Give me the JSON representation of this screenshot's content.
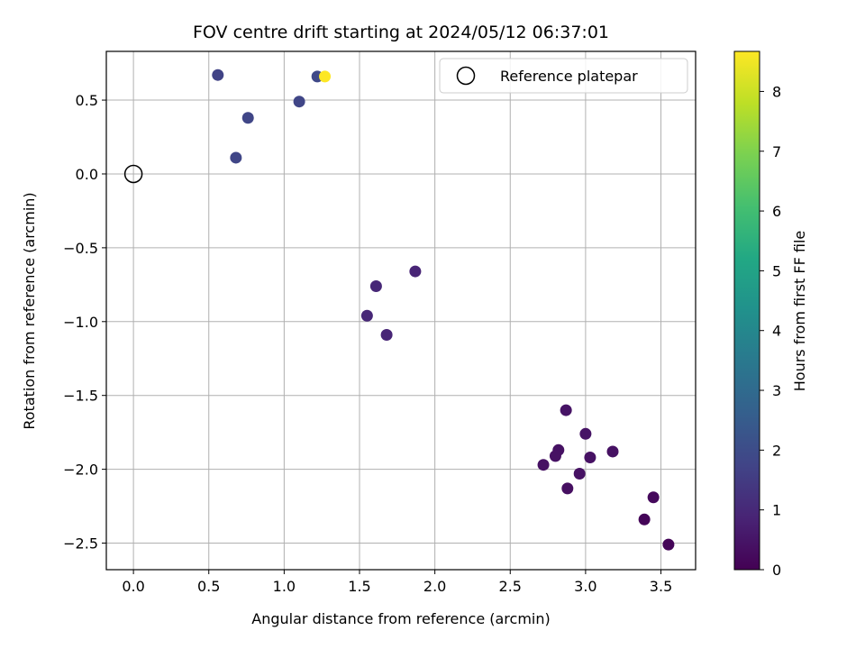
{
  "chart_data": {
    "type": "scatter",
    "title": "FOV centre drift starting at 2024/05/12 06:37:01",
    "xlabel": "Angular distance from reference (arcmin)",
    "ylabel": "Rotation from reference (arcmin)",
    "colorbar_label": "Hours from first FF file",
    "xlim": [
      -0.18,
      3.73
    ],
    "ylim": [
      -2.68,
      0.83
    ],
    "clim": [
      0,
      8.67
    ],
    "x_ticks": [
      "0.0",
      "0.5",
      "1.0",
      "1.5",
      "2.0",
      "2.5",
      "3.0",
      "3.5"
    ],
    "y_ticks": [
      "0.5",
      "0.0",
      "−0.5",
      "−1.0",
      "−1.5",
      "−2.0",
      "−2.5"
    ],
    "colorbar_ticks": [
      "0",
      "1",
      "2",
      "3",
      "4",
      "5",
      "6",
      "7",
      "8"
    ],
    "grid": true,
    "colormap": "viridis",
    "legend": {
      "position": "top-right",
      "entries": [
        "Reference platepar"
      ]
    },
    "reference_point": {
      "x": 0.0,
      "y": 0.0
    },
    "points": [
      {
        "x": 0.56,
        "y": 0.67,
        "t": 1.7
      },
      {
        "x": 0.76,
        "y": 0.38,
        "t": 1.8
      },
      {
        "x": 0.68,
        "y": 0.11,
        "t": 1.8
      },
      {
        "x": 1.1,
        "y": 0.49,
        "t": 1.8
      },
      {
        "x": 1.22,
        "y": 0.66,
        "t": 1.9
      },
      {
        "x": 1.27,
        "y": 0.66,
        "t": 8.67
      },
      {
        "x": 1.87,
        "y": -0.66,
        "t": 0.9
      },
      {
        "x": 1.61,
        "y": -0.76,
        "t": 0.95
      },
      {
        "x": 1.55,
        "y": -0.96,
        "t": 0.95
      },
      {
        "x": 1.68,
        "y": -1.09,
        "t": 0.9
      },
      {
        "x": 2.87,
        "y": -1.6,
        "t": 0.45
      },
      {
        "x": 3.0,
        "y": -1.76,
        "t": 0.45
      },
      {
        "x": 3.18,
        "y": -1.88,
        "t": 0.4
      },
      {
        "x": 2.82,
        "y": -1.87,
        "t": 0.4
      },
      {
        "x": 2.8,
        "y": -1.91,
        "t": 0.4
      },
      {
        "x": 2.72,
        "y": -1.97,
        "t": 0.4
      },
      {
        "x": 3.03,
        "y": -1.92,
        "t": 0.4
      },
      {
        "x": 2.96,
        "y": -2.03,
        "t": 0.4
      },
      {
        "x": 2.88,
        "y": -2.13,
        "t": 0.35
      },
      {
        "x": 3.45,
        "y": -2.19,
        "t": 0.2
      },
      {
        "x": 3.39,
        "y": -2.34,
        "t": 0.1
      },
      {
        "x": 3.55,
        "y": -2.51,
        "t": 0.1
      }
    ]
  }
}
